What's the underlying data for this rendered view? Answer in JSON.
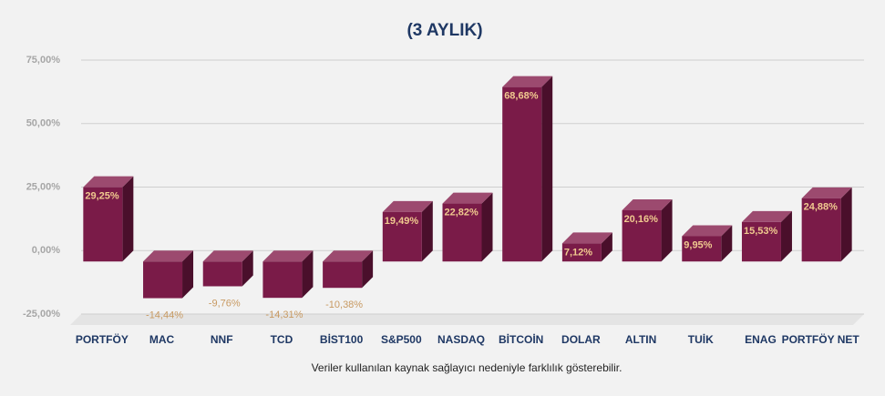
{
  "chart_data": {
    "type": "bar3d",
    "title": "(3 AYLIK)",
    "categories": [
      "PORTFÖY",
      "MAC",
      "NNF",
      "TCD",
      "BİST100",
      "S&P500",
      "NASDAQ",
      "BİTCOİN",
      "DOLAR",
      "ALTIN",
      "TUİK",
      "ENAG",
      "PORTFÖY NET"
    ],
    "values": [
      29.25,
      -14.44,
      -9.76,
      -14.31,
      -10.38,
      19.49,
      22.82,
      68.68,
      7.12,
      20.16,
      9.95,
      15.53,
      24.88
    ],
    "value_labels": [
      "29,25%",
      "-14,44%",
      "-9,76%",
      "-14,31%",
      "-10,38%",
      "19,49%",
      "22,82%",
      "68,68%",
      "7,12%",
      "20,16%",
      "9,95%",
      "15,53%",
      "24,88%"
    ],
    "color": "#7a1b48",
    "ylim": [
      -25,
      75
    ],
    "yticks": [
      {
        "value": -25,
        "label": "-25,00%"
      },
      {
        "value": 0,
        "label": "0,00%"
      },
      {
        "value": 25,
        "label": "25,00%"
      },
      {
        "value": 50,
        "label": "50,00%"
      },
      {
        "value": 75,
        "label": "75,00%"
      }
    ],
    "grid": true,
    "footnote": "Veriler kullanılan kaynak sağlayıcı nedeniyle farklılık gösterebilir."
  }
}
